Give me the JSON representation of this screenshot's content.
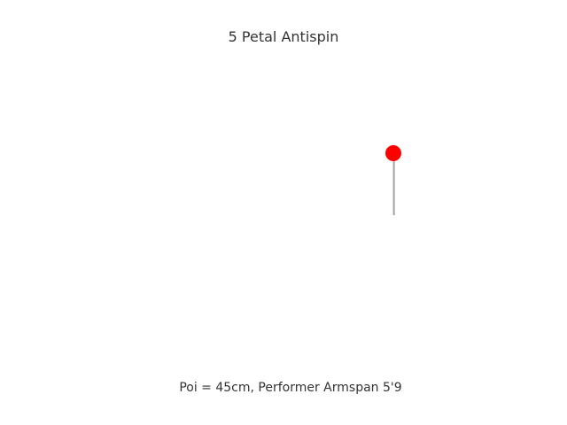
{
  "title": "5 Petal Antispin",
  "caption": "Poi = 45cm, Performer Armspan 5'9",
  "colors": {
    "poi_head": "#ff0000",
    "tether": "#888888",
    "text": "#333333"
  }
}
